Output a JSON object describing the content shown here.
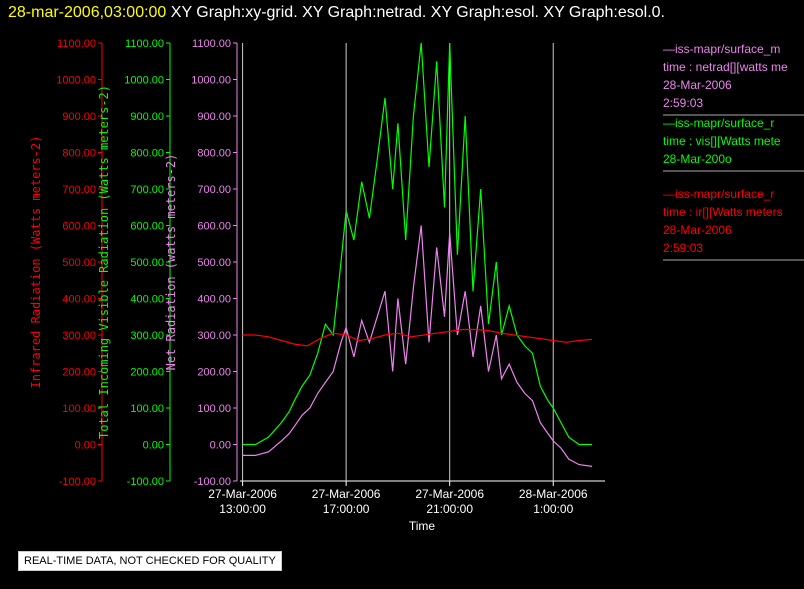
{
  "header": {
    "time": "28-mar-2006,03:00:00",
    "graphs": "XY Graph:xy-grid.  XY Graph:netrad.  XY Graph:esol.  XY Graph:esol.0."
  },
  "colors": {
    "ir": "#ff0000",
    "vis": "#00ff00",
    "net": "#ee82ee",
    "axis": "#ffffff"
  },
  "legend": [
    {
      "line1": "—iss-mapr/surface_m",
      "line2": "time : netrad[][watts me",
      "line3": "28-Mar-2006",
      "line4": "2:59:03",
      "color": "#ee82ee"
    },
    {
      "line1": "—iss-mapr/surface_r",
      "line2": "time : vis[][Watts mete",
      "line3": "28-Mar-200o",
      "line4": "",
      "color": "#00ff00"
    },
    {
      "line1": "—iss-mapr/surface_r",
      "line2": "time : ir[][Watts meters",
      "line3": "28-Mar-2006",
      "line4": "2:59:03",
      "color": "#ff0000"
    }
  ],
  "qc_notice": "REAL-TIME DATA, NOT CHECKED FOR QUALITY",
  "chart_data": {
    "type": "line",
    "xlabel": "Time",
    "x_ticks": [
      {
        "line1": "27-Mar-2006",
        "line2": "13:00:00",
        "hours": 13
      },
      {
        "line1": "27-Mar-2006",
        "line2": "17:00:00",
        "hours": 17
      },
      {
        "line1": "27-Mar-2006",
        "line2": "21:00:00",
        "hours": 21
      },
      {
        "line1": "28-Mar-2006",
        "line2": "1:00:00",
        "hours": 25
      }
    ],
    "xlim_hours": [
      12.9,
      27.0
    ],
    "ylim": [
      -100,
      1100
    ],
    "y_ticks": [
      "1100.00",
      "1000.00",
      "900.00",
      "800.00",
      "700.00",
      "600.00",
      "500.00",
      "400.00",
      "300.00",
      "200.00",
      "100.00",
      "0.00",
      "-100.00"
    ],
    "y_axes": [
      {
        "label": "Infrared Radiation (Watts meters-2)",
        "color": "#ff0000"
      },
      {
        "label": "Total Incoming Visible Radiation (Watts meters-2)",
        "color": "#00ff00"
      },
      {
        "label": "Net Radiation (watts meters-2)",
        "color": "#ee82ee"
      }
    ],
    "vertical_grid": true,
    "series": [
      {
        "name": "vis",
        "color": "#00ff00",
        "x": [
          13.0,
          13.5,
          14.0,
          14.5,
          14.8,
          15.0,
          15.3,
          15.6,
          15.9,
          16.2,
          16.5,
          16.8,
          17.0,
          17.3,
          17.6,
          17.9,
          18.2,
          18.5,
          18.8,
          19.0,
          19.3,
          19.6,
          19.9,
          20.2,
          20.5,
          20.8,
          21.0,
          21.3,
          21.6,
          21.9,
          22.2,
          22.5,
          22.8,
          23.0,
          23.3,
          23.6,
          23.9,
          24.2,
          24.5,
          24.8,
          25.0,
          25.3,
          25.6,
          26.0,
          26.5
        ],
        "y": [
          0,
          0,
          20,
          60,
          90,
          120,
          160,
          190,
          250,
          330,
          300,
          500,
          640,
          560,
          720,
          620,
          780,
          950,
          700,
          880,
          560,
          900,
          1100,
          760,
          1050,
          650,
          1100,
          520,
          900,
          420,
          700,
          330,
          500,
          300,
          380,
          300,
          270,
          250,
          160,
          120,
          100,
          60,
          20,
          0,
          0
        ]
      },
      {
        "name": "net",
        "color": "#ee82ee",
        "x": [
          13.0,
          13.5,
          14.0,
          14.5,
          14.8,
          15.0,
          15.3,
          15.6,
          15.9,
          16.2,
          16.5,
          16.8,
          17.0,
          17.3,
          17.6,
          17.9,
          18.2,
          18.5,
          18.8,
          19.0,
          19.3,
          19.6,
          19.9,
          20.2,
          20.5,
          20.8,
          21.0,
          21.3,
          21.6,
          21.9,
          22.2,
          22.5,
          22.8,
          23.0,
          23.3,
          23.6,
          23.9,
          24.2,
          24.5,
          24.8,
          25.0,
          25.3,
          25.6,
          26.0,
          26.5
        ],
        "y": [
          -30,
          -30,
          -20,
          10,
          30,
          50,
          80,
          100,
          140,
          170,
          200,
          280,
          320,
          240,
          340,
          280,
          350,
          420,
          200,
          400,
          220,
          430,
          600,
          280,
          540,
          350,
          580,
          300,
          420,
          240,
          380,
          200,
          300,
          180,
          220,
          170,
          140,
          120,
          60,
          30,
          10,
          -10,
          -40,
          -55,
          -60
        ]
      },
      {
        "name": "ir",
        "color": "#ff0000",
        "x": [
          13.0,
          13.5,
          14.0,
          14.5,
          15.0,
          15.5,
          16.0,
          16.5,
          17.0,
          17.5,
          18.0,
          18.5,
          19.0,
          19.5,
          20.0,
          20.5,
          21.0,
          21.5,
          22.0,
          22.5,
          23.0,
          23.5,
          24.0,
          24.5,
          25.0,
          25.5,
          26.0,
          26.5
        ],
        "y": [
          300,
          300,
          295,
          285,
          275,
          270,
          290,
          305,
          300,
          285,
          290,
          300,
          305,
          295,
          300,
          305,
          310,
          315,
          315,
          312,
          305,
          300,
          295,
          290,
          285,
          280,
          285,
          288
        ]
      }
    ]
  }
}
